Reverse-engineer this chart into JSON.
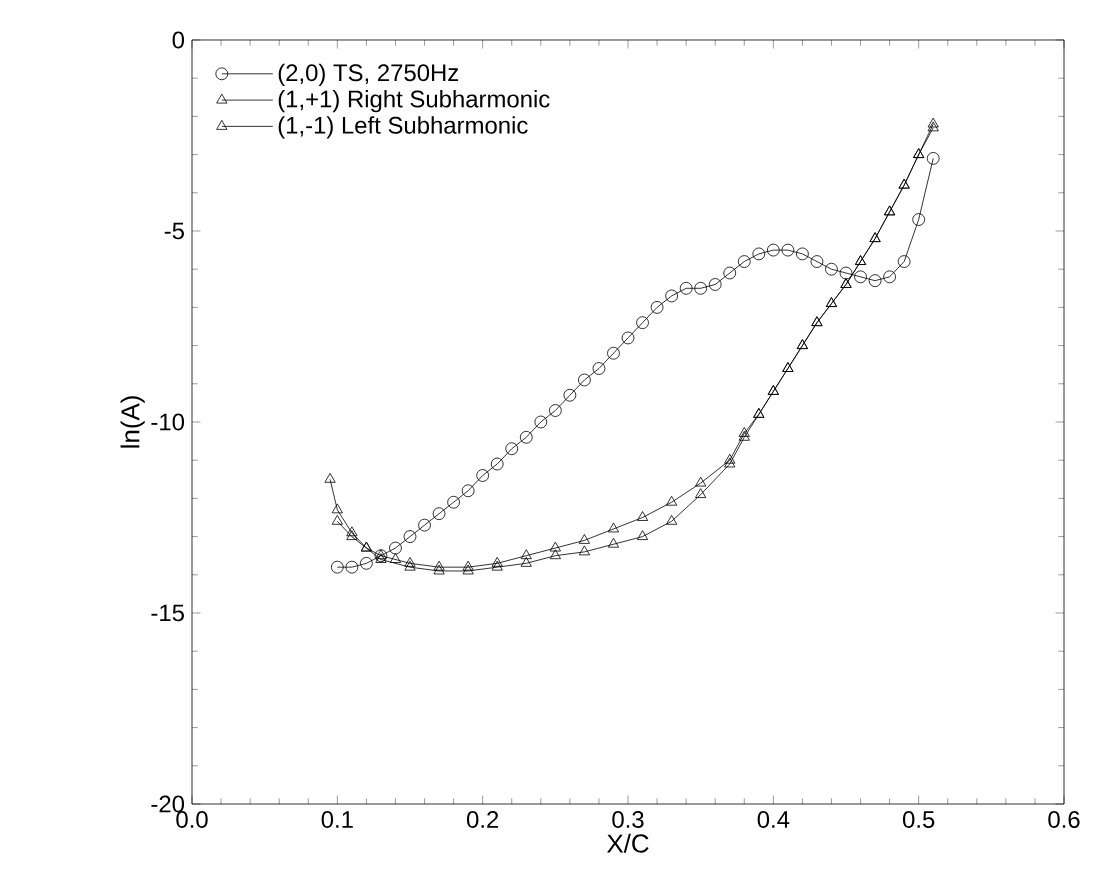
{
  "chart_data": {
    "type": "line",
    "xlabel": "X/C",
    "ylabel": "ln(A)",
    "xlim": [
      0,
      0.6
    ],
    "ylim": [
      -20,
      0
    ],
    "xticks": [
      {
        "value": 0,
        "label": "0.0"
      },
      {
        "value": 0.1,
        "label": "0.1"
      },
      {
        "value": 0.2,
        "label": "0.2"
      },
      {
        "value": 0.3,
        "label": "0.3"
      },
      {
        "value": 0.4,
        "label": "0.4"
      },
      {
        "value": 0.5,
        "label": "0.5"
      },
      {
        "value": 0.6,
        "label": "0.6"
      }
    ],
    "yticks": [
      -20,
      -15,
      -10,
      -5,
      0
    ],
    "grid": false,
    "legend": "top left",
    "line_style": "solid",
    "series": [
      {
        "name": "(2,0) TS, 2750Hz",
        "color": "#000000",
        "marker": "circle",
        "x": [
          0.1,
          0.11,
          0.12,
          0.13,
          0.14,
          0.15,
          0.16,
          0.17,
          0.18,
          0.19,
          0.2,
          0.21,
          0.22,
          0.23,
          0.24,
          0.25,
          0.26,
          0.27,
          0.28,
          0.29,
          0.3,
          0.31,
          0.32,
          0.33,
          0.34,
          0.35,
          0.36,
          0.37,
          0.38,
          0.39,
          0.4,
          0.41,
          0.42,
          0.43,
          0.44,
          0.45,
          0.46,
          0.47,
          0.48,
          0.49,
          0.5,
          0.51
        ],
        "values": [
          -13.8,
          -13.8,
          -13.7,
          -13.5,
          -13.3,
          -13.0,
          -12.7,
          -12.4,
          -12.1,
          -11.8,
          -11.4,
          -11.1,
          -10.7,
          -10.4,
          -10.0,
          -9.7,
          -9.3,
          -8.9,
          -8.6,
          -8.2,
          -7.8,
          -7.4,
          -7.0,
          -6.7,
          -6.5,
          -6.5,
          -6.4,
          -6.1,
          -5.8,
          -5.6,
          -5.5,
          -5.5,
          -5.6,
          -5.8,
          -6.0,
          -6.1,
          -6.2,
          -6.3,
          -6.2,
          -5.8,
          -4.7,
          -3.1
        ]
      },
      {
        "name": "(1,+1) Right Subharmonic",
        "color": "#000000",
        "marker": "triangle",
        "x": [
          0.095,
          0.1,
          0.11,
          0.12,
          0.13,
          0.14,
          0.15,
          0.17,
          0.19,
          0.21,
          0.23,
          0.25,
          0.27,
          0.29,
          0.31,
          0.33,
          0.35,
          0.37,
          0.38,
          0.39,
          0.4,
          0.41,
          0.42,
          0.43,
          0.44,
          0.45,
          0.46,
          0.47,
          0.48,
          0.49,
          0.5,
          0.51
        ],
        "values": [
          -11.5,
          -12.3,
          -12.9,
          -13.3,
          -13.5,
          -13.6,
          -13.7,
          -13.8,
          -13.8,
          -13.7,
          -13.5,
          -13.3,
          -13.1,
          -12.8,
          -12.5,
          -12.1,
          -11.6,
          -11.0,
          -10.3,
          -9.8,
          -9.2,
          -8.6,
          -8.0,
          -7.4,
          -6.9,
          -6.4,
          -5.8,
          -5.2,
          -4.5,
          -3.8,
          -3.0,
          -2.2
        ]
      },
      {
        "name": "(1,-1) Left Subharmonic",
        "color": "#000000",
        "marker": "triangle",
        "x": [
          0.1,
          0.11,
          0.12,
          0.13,
          0.15,
          0.17,
          0.19,
          0.21,
          0.23,
          0.25,
          0.27,
          0.29,
          0.31,
          0.33,
          0.35,
          0.37,
          0.38,
          0.39,
          0.4,
          0.41,
          0.42,
          0.43,
          0.44,
          0.45,
          0.46,
          0.47,
          0.48,
          0.49,
          0.5,
          0.51
        ],
        "values": [
          -12.6,
          -13.0,
          -13.3,
          -13.6,
          -13.8,
          -13.9,
          -13.9,
          -13.8,
          -13.7,
          -13.5,
          -13.4,
          -13.2,
          -13.0,
          -12.6,
          -11.9,
          -11.1,
          -10.4,
          -9.8,
          -9.2,
          -8.6,
          -8.0,
          -7.4,
          -6.9,
          -6.4,
          -5.8,
          -5.2,
          -4.5,
          -3.8,
          -3.0,
          -2.3
        ]
      }
    ]
  }
}
